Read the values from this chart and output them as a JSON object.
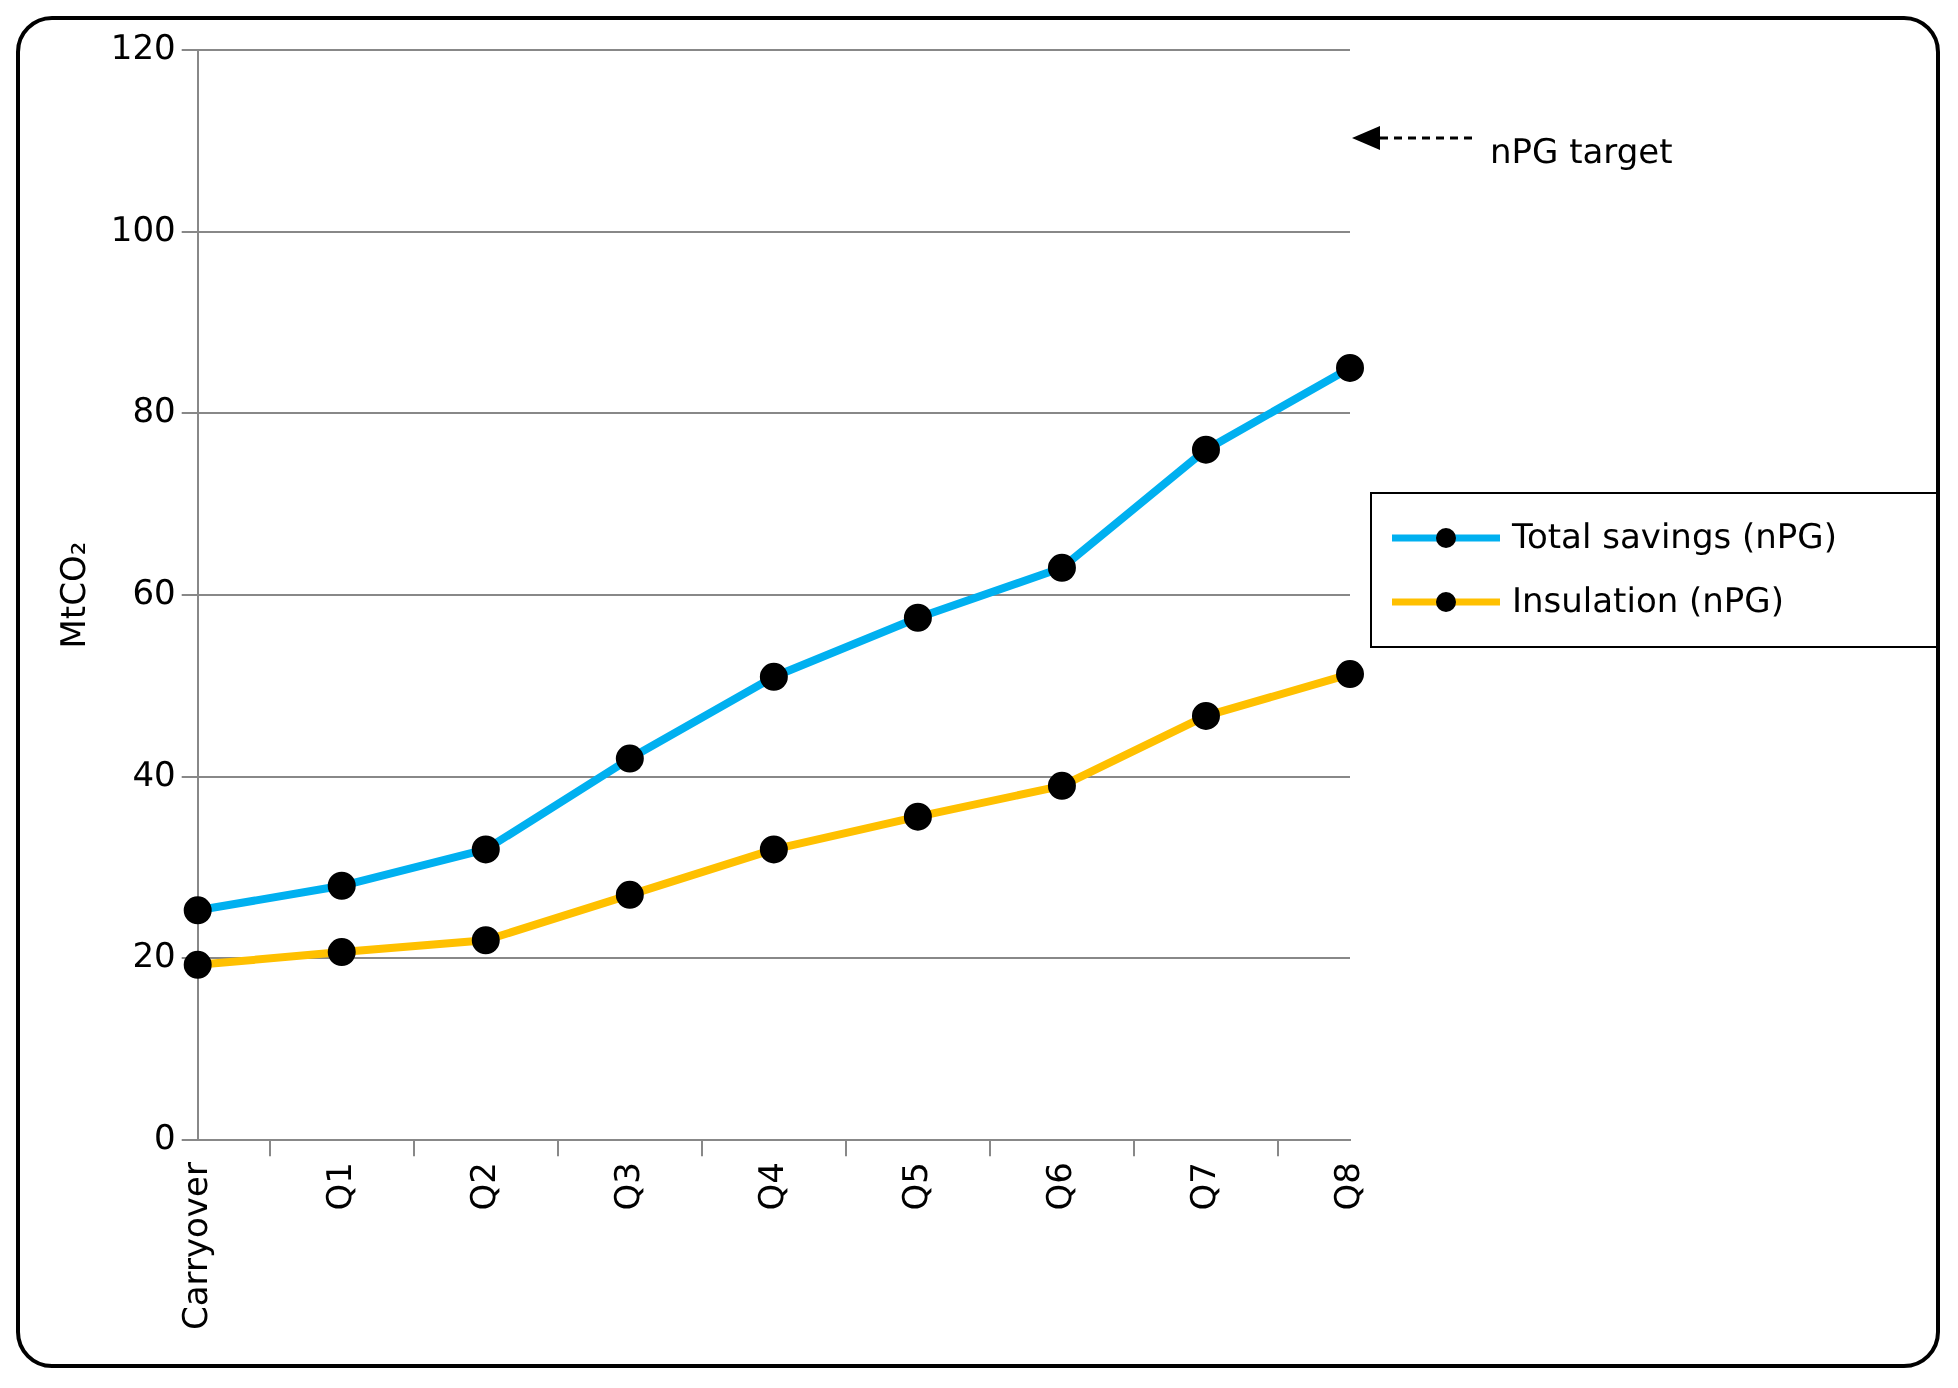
{
  "chart_data": {
    "type": "line",
    "ylabel": "MtCO₂",
    "categories": [
      "Carryover",
      "Q1",
      "Q2",
      "Q3",
      "Q4",
      "Q5",
      "Q6",
      "Q7",
      "Q8"
    ],
    "series": [
      {
        "name": "Total savings (nPG)",
        "color": "#00b0f0",
        "values": [
          25.3,
          28,
          32,
          42,
          51,
          57.5,
          63,
          76,
          85
        ]
      },
      {
        "name": "Insulation (nPG)",
        "color": "#ffc000",
        "values": [
          19.3,
          20.7,
          22,
          27,
          32,
          35.6,
          39,
          46.7,
          51.3
        ]
      }
    ],
    "ylim": [
      0,
      120
    ],
    "yticks": [
      0,
      20,
      40,
      60,
      80,
      100,
      120
    ],
    "grid": "y",
    "legend": "right",
    "marker": "circle",
    "line_style": "solid",
    "annotations": [
      "nPG target"
    ]
  }
}
